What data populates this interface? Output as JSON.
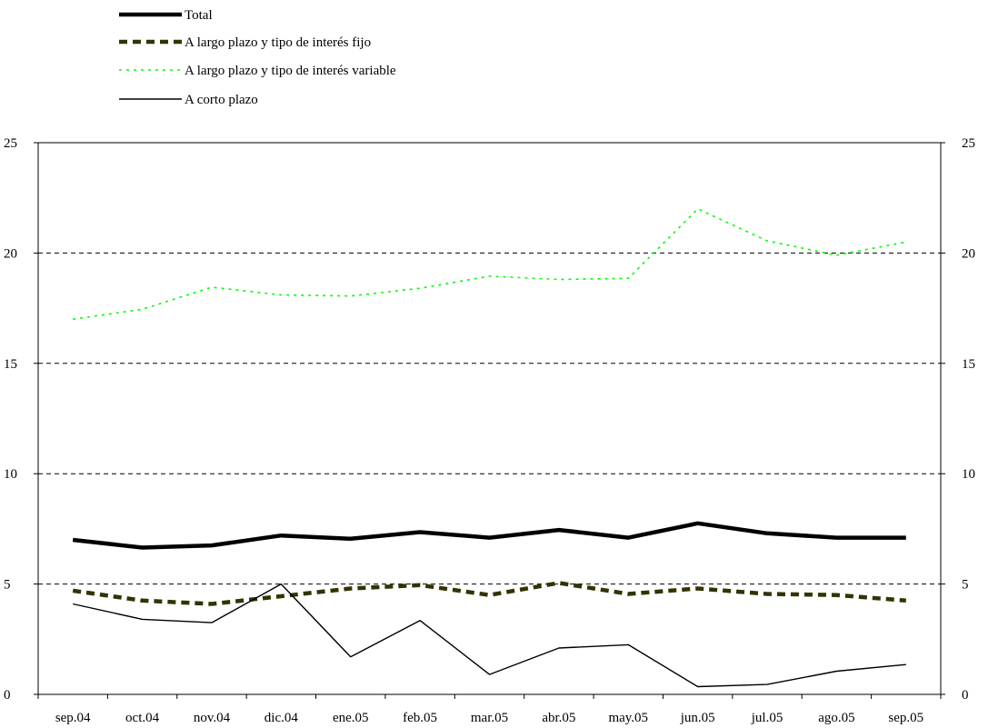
{
  "chart_data": {
    "type": "line",
    "title": "",
    "xlabel": "",
    "ylabel": "",
    "ylim": [
      0,
      25
    ],
    "yticks": [
      0,
      5,
      10,
      15,
      20,
      25
    ],
    "y2ticks": [
      0,
      5,
      10,
      15,
      20,
      25
    ],
    "grid": "horizontal dashed",
    "legend_position": "top-left",
    "categories": [
      "sep.04",
      "oct.04",
      "nov.04",
      "dic.04",
      "ene.05",
      "feb.05",
      "mar.05",
      "abr.05",
      "may.05",
      "jun.05",
      "jul.05",
      "ago.05",
      "sep.05"
    ],
    "series": [
      {
        "name": "Total",
        "style": "solid-thick",
        "color": "#000000",
        "values": [
          7.0,
          6.65,
          6.75,
          7.2,
          7.05,
          7.35,
          7.1,
          7.45,
          7.1,
          7.75,
          7.3,
          7.1,
          7.1
        ]
      },
      {
        "name": "A largo plazo y tipo de interés fijo",
        "style": "dashed-thick",
        "color": "#333300",
        "values": [
          4.7,
          4.25,
          4.1,
          4.45,
          4.8,
          4.95,
          4.5,
          5.05,
          4.55,
          4.8,
          4.55,
          4.5,
          4.25
        ]
      },
      {
        "name": "A largo plazo y tipo de interés variable",
        "style": "dotted",
        "color": "#00ff00",
        "values": [
          17.0,
          17.45,
          18.45,
          18.1,
          18.05,
          18.4,
          18.95,
          18.8,
          18.85,
          22.0,
          20.55,
          19.9,
          20.5
        ]
      },
      {
        "name": "A corto plazo",
        "style": "solid-thin",
        "color": "#000000",
        "values": [
          4.1,
          3.4,
          3.25,
          5.0,
          1.7,
          3.35,
          0.9,
          2.1,
          2.25,
          0.35,
          0.45,
          1.05,
          1.35
        ]
      }
    ]
  }
}
